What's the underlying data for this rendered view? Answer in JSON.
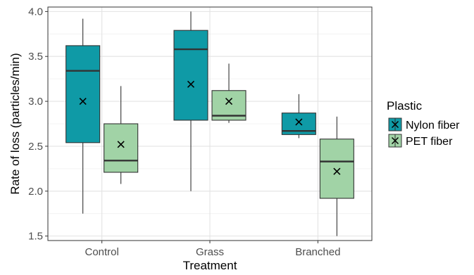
{
  "chart_data": {
    "type": "boxplot",
    "xlabel": "Treatment",
    "ylabel": "Rate of loss (particles/min)",
    "categories": [
      "Control",
      "Grass",
      "Branched"
    ],
    "ylim": [
      1.45,
      4.05
    ],
    "yticks": [
      1.5,
      2.0,
      2.5,
      3.0,
      3.5,
      4.0
    ],
    "ytick_labels": [
      "1.5",
      "2.0",
      "2.5",
      "3.0",
      "3.5",
      "4.0"
    ],
    "grid": true,
    "legend": {
      "title": "Plastic",
      "position": "right"
    },
    "series": [
      {
        "name": "Nylon fiber",
        "color": "#0f9aa6",
        "boxes": [
          {
            "category": "Control",
            "min": 1.75,
            "q1": 2.54,
            "median": 3.34,
            "q3": 3.62,
            "max": 3.92,
            "mean": 3.0
          },
          {
            "category": "Grass",
            "min": 2.0,
            "q1": 2.79,
            "median": 3.58,
            "q3": 3.79,
            "max": 4.0,
            "mean": 3.19
          },
          {
            "category": "Branched",
            "min": 2.59,
            "q1": 2.63,
            "median": 2.67,
            "q3": 2.87,
            "max": 3.08,
            "mean": 2.77
          }
        ]
      },
      {
        "name": "PET fiber",
        "color": "#a1d3a6",
        "boxes": [
          {
            "category": "Control",
            "min": 2.08,
            "q1": 2.21,
            "median": 2.34,
            "q3": 2.75,
            "max": 3.17,
            "mean": 2.52
          },
          {
            "category": "Grass",
            "min": 2.76,
            "q1": 2.79,
            "median": 2.84,
            "q3": 3.12,
            "max": 3.42,
            "mean": 3.0
          },
          {
            "category": "Branched",
            "min": 1.5,
            "q1": 1.92,
            "median": 2.33,
            "q3": 2.58,
            "max": 2.83,
            "mean": 2.22
          }
        ]
      }
    ]
  }
}
